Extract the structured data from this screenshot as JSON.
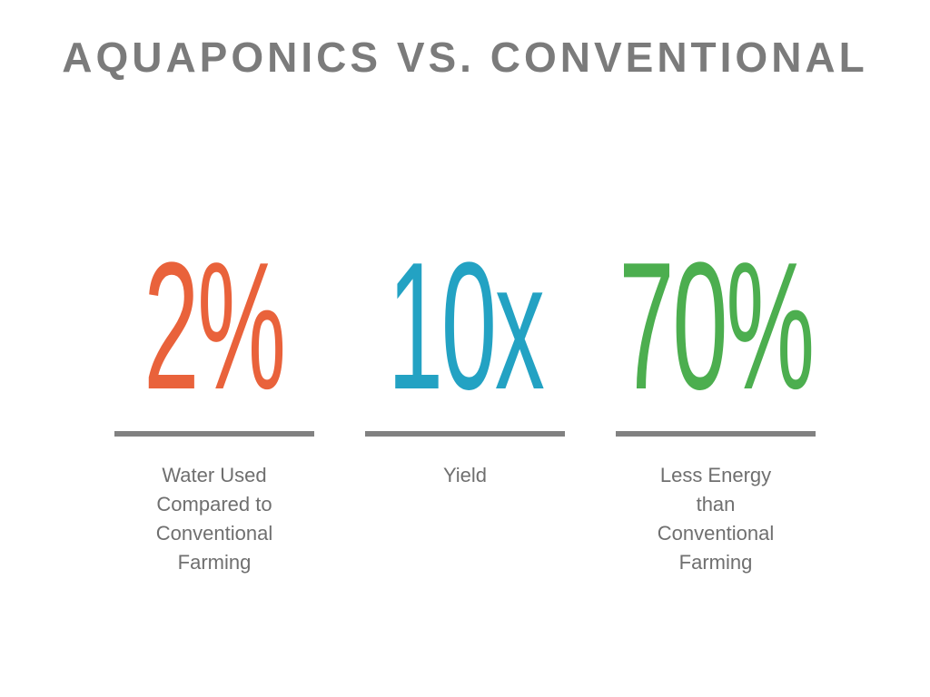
{
  "header": {
    "title": "AQUAPONICS VS. CONVENTIONAL"
  },
  "stats": [
    {
      "value": "2%",
      "label": "Water Used Compared to Conventional Farming"
    },
    {
      "value": "10x",
      "label": "Yield"
    },
    {
      "value": "70%",
      "label": "Less Energy than Conventional Farming"
    }
  ]
}
